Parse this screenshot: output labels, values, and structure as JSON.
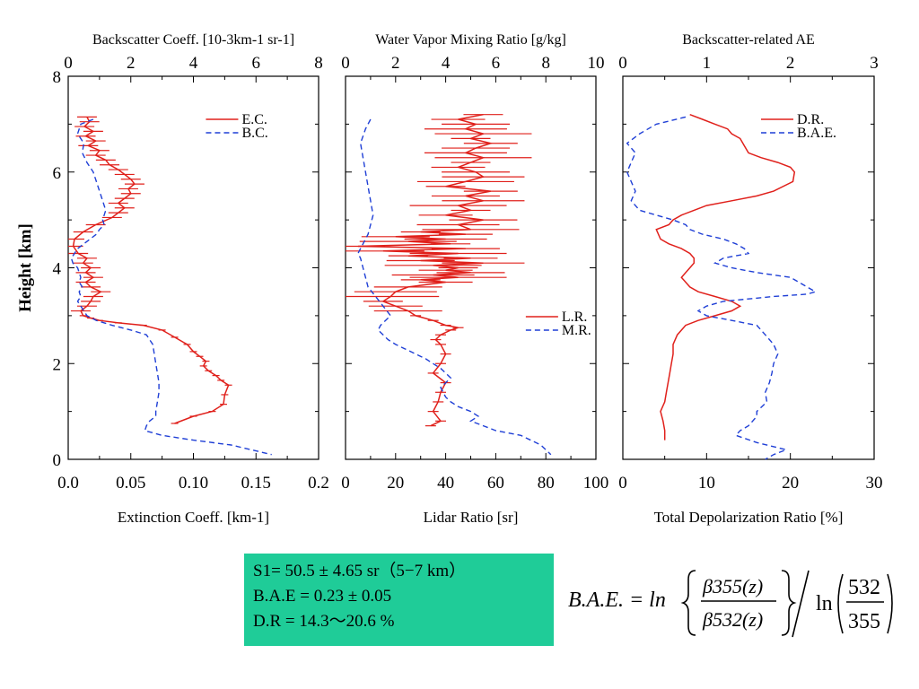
{
  "chart_data": [
    {
      "type": "line",
      "top_xlabel": "Backscatter Coeff. [10-3km-1 sr-1]",
      "top_xticks": [
        "0",
        "2",
        "4",
        "6",
        "8"
      ],
      "top_xlim": [
        0,
        8
      ],
      "bottom_xlabel": "Extinction Coeff. [km-1]",
      "bottom_xticks": [
        "0.0",
        "0.05",
        "0.10",
        "0.15",
        "0.2"
      ],
      "bottom_xlim": [
        0,
        0.2
      ],
      "ylabel": "Height [km]",
      "yticks": [
        "0",
        "2",
        "4",
        "6",
        "8"
      ],
      "ylim": [
        0,
        8
      ],
      "legend_position": "top-right",
      "series": [
        {
          "name": "E.C.",
          "color": "#e0201b",
          "style": "solid",
          "axis": "bottom",
          "error_bars": true,
          "x": [
            0.015,
            0.017,
            0.013,
            0.02,
            0.014,
            0.022,
            0.016,
            0.025,
            0.022,
            0.03,
            0.033,
            0.04,
            0.045,
            0.05,
            0.053,
            0.048,
            0.05,
            0.045,
            0.04,
            0.045,
            0.04,
            0.035,
            0.022,
            0.012,
            0.005,
            0.004,
            0.008,
            0.015,
            0.012,
            0.018,
            0.014,
            0.02,
            0.014,
            0.018,
            0.026,
            0.02,
            0.018,
            0.015,
            0.01,
            0.012,
            0.018,
            0.025,
            0.04,
            0.06,
            0.075,
            0.085,
            0.095,
            0.1,
            0.105,
            0.11,
            0.108,
            0.112,
            0.118,
            0.122,
            0.128,
            0.125,
            0.124,
            0.115,
            0.1,
            0.085
          ],
          "y": [
            7.15,
            7.05,
            6.95,
            6.85,
            6.75,
            6.65,
            6.55,
            6.45,
            6.35,
            6.25,
            6.15,
            6.05,
            5.95,
            5.85,
            5.75,
            5.65,
            5.55,
            5.45,
            5.35,
            5.25,
            5.15,
            5.05,
            4.9,
            4.75,
            4.6,
            4.45,
            4.3,
            4.2,
            4.1,
            4.0,
            3.9,
            3.8,
            3.7,
            3.6,
            3.5,
            3.4,
            3.3,
            3.2,
            3.1,
            3.0,
            2.95,
            2.9,
            2.85,
            2.8,
            2.7,
            2.55,
            2.4,
            2.25,
            2.15,
            2.05,
            1.95,
            1.85,
            1.75,
            1.65,
            1.55,
            1.35,
            1.15,
            1.0,
            0.9,
            0.75
          ]
        },
        {
          "name": "B.C.",
          "color": "#1f3fd6",
          "style": "dashed",
          "axis": "top",
          "x": [
            0.8,
            0.4,
            0.3,
            0.5,
            0.45,
            0.6,
            0.8,
            0.9,
            1.0,
            1.1,
            1.2,
            1.1,
            1.15,
            1.0,
            0.9,
            0.7,
            0.5,
            0.3,
            0.2,
            0.1,
            0.15,
            0.3,
            0.35,
            0.4,
            0.35,
            0.45,
            0.35,
            0.4,
            0.3,
            0.5,
            0.6,
            0.9,
            1.4,
            2.0,
            2.5,
            2.7,
            2.75,
            2.8,
            2.85,
            2.9,
            2.9,
            2.85,
            2.8,
            2.8,
            2.6,
            2.5,
            2.45,
            3.0,
            4.0,
            5.2,
            6.5
          ],
          "y": [
            7.1,
            7.0,
            6.8,
            6.6,
            6.4,
            6.2,
            6.0,
            5.8,
            5.6,
            5.4,
            5.2,
            5.0,
            4.9,
            4.8,
            4.7,
            4.6,
            4.5,
            4.4,
            4.3,
            4.2,
            4.1,
            4.0,
            3.9,
            3.8,
            3.7,
            3.6,
            3.5,
            3.4,
            3.3,
            3.1,
            3.0,
            2.9,
            2.8,
            2.7,
            2.6,
            2.4,
            2.2,
            2.0,
            1.8,
            1.6,
            1.4,
            1.2,
            1.0,
            0.9,
            0.8,
            0.7,
            0.6,
            0.5,
            0.4,
            0.3,
            0.1
          ]
        }
      ]
    },
    {
      "type": "line",
      "top_xlabel": "Water Vapor Mixing Ratio [g/kg]",
      "top_xticks": [
        "0",
        "2",
        "4",
        "6",
        "8",
        "10"
      ],
      "top_xlim": [
        0,
        10
      ],
      "bottom_xlabel": "Lidar Ratio [sr]",
      "bottom_xticks": [
        "0",
        "20",
        "40",
        "60",
        "80",
        "100"
      ],
      "bottom_xlim": [
        0,
        100
      ],
      "ylim": [
        0,
        8
      ],
      "legend_position": "center-right",
      "series": [
        {
          "name": "L.R.",
          "color": "#e0201b",
          "style": "solid",
          "axis": "bottom",
          "error_bars": true,
          "x": [
            55,
            45,
            52,
            48,
            55,
            50,
            58,
            52,
            48,
            55,
            50,
            45,
            52,
            55,
            48,
            40,
            58,
            48,
            55,
            45,
            50,
            40,
            55,
            45,
            50,
            30,
            48,
            20,
            40,
            25,
            42,
            5,
            48,
            15,
            45,
            25,
            50,
            30,
            55,
            35,
            45,
            40,
            50,
            35,
            45,
            30,
            40,
            25,
            20,
            18,
            15,
            20,
            25,
            28,
            35,
            40,
            45,
            42,
            38,
            36,
            38,
            40,
            38,
            35,
            40,
            38,
            37,
            35,
            38,
            34
          ],
          "y": [
            7.2,
            7.1,
            7.0,
            6.9,
            6.8,
            6.7,
            6.6,
            6.5,
            6.4,
            6.3,
            6.2,
            6.1,
            6.0,
            5.9,
            5.8,
            5.7,
            5.6,
            5.5,
            5.4,
            5.3,
            5.2,
            5.1,
            5.0,
            4.9,
            4.8,
            4.75,
            4.7,
            4.65,
            4.6,
            4.55,
            4.5,
            4.45,
            4.4,
            4.35,
            4.3,
            4.25,
            4.2,
            4.15,
            4.1,
            4.05,
            4.0,
            3.95,
            3.9,
            3.85,
            3.8,
            3.75,
            3.7,
            3.6,
            3.5,
            3.4,
            3.3,
            3.2,
            3.1,
            3.0,
            2.9,
            2.8,
            2.75,
            2.7,
            2.6,
            2.5,
            2.4,
            2.2,
            2.0,
            1.8,
            1.6,
            1.4,
            1.2,
            1.0,
            0.8,
            0.7
          ]
        },
        {
          "name": "M.R.",
          "color": "#1f3fd6",
          "style": "dashed",
          "axis": "top",
          "x": [
            1.0,
            0.8,
            0.6,
            0.7,
            0.8,
            0.9,
            1.0,
            1.1,
            1.0,
            0.9,
            0.8,
            0.7,
            0.6,
            0.5,
            0.6,
            0.7,
            0.8,
            0.9,
            1.2,
            1.5,
            1.8,
            1.6,
            1.4,
            1.3,
            1.5,
            1.7,
            2.0,
            2.4,
            2.8,
            3.2,
            3.5,
            3.8,
            4.0,
            4.2,
            4.0,
            3.8,
            3.9,
            4.0,
            4.2,
            4.5,
            5.0,
            5.3,
            5.0,
            5.5,
            6.0,
            7.0,
            7.8,
            8.2
          ],
          "y": [
            7.1,
            6.9,
            6.6,
            6.3,
            6.0,
            5.7,
            5.4,
            5.1,
            4.9,
            4.7,
            4.6,
            4.5,
            4.4,
            4.3,
            4.2,
            4.0,
            3.8,
            3.6,
            3.4,
            3.2,
            3.0,
            2.9,
            2.8,
            2.7,
            2.6,
            2.5,
            2.4,
            2.3,
            2.2,
            2.1,
            2.0,
            1.9,
            1.8,
            1.7,
            1.6,
            1.5,
            1.4,
            1.3,
            1.2,
            1.1,
            1.0,
            0.9,
            0.8,
            0.7,
            0.6,
            0.5,
            0.3,
            0.1
          ]
        }
      ]
    },
    {
      "type": "line",
      "top_xlabel": "Backscatter-related AE",
      "top_xticks": [
        "0",
        "1",
        "2",
        "3"
      ],
      "top_xlim": [
        0,
        3
      ],
      "bottom_xlabel": "Total Depolarization Ratio [%]",
      "bottom_xticks": [
        "0",
        "10",
        "20",
        "30"
      ],
      "bottom_xlim": [
        0,
        30
      ],
      "ylim": [
        0,
        8
      ],
      "legend_position": "top-right",
      "series": [
        {
          "name": "D.R.",
          "color": "#e0201b",
          "style": "solid",
          "axis": "bottom",
          "x": [
            8,
            9.5,
            11,
            12.5,
            13,
            14,
            14.5,
            15,
            16.5,
            18.5,
            20,
            20.5,
            20.3,
            18,
            16,
            13,
            10,
            8.5,
            7,
            6,
            5.5,
            4,
            4.5,
            5.5,
            7,
            8,
            8.5,
            8.5,
            8,
            7,
            8,
            9,
            11,
            13,
            14,
            13,
            11,
            9,
            7.5,
            6.5,
            6,
            6,
            5.8,
            5.6,
            5.4,
            5.2,
            5,
            4.5,
            4.8,
            5,
            5
          ],
          "y": [
            7.2,
            7.1,
            7.0,
            6.9,
            6.8,
            6.7,
            6.55,
            6.4,
            6.3,
            6.2,
            6.1,
            6.0,
            5.8,
            5.6,
            5.5,
            5.4,
            5.3,
            5.2,
            5.1,
            5.0,
            4.9,
            4.8,
            4.6,
            4.5,
            4.4,
            4.3,
            4.2,
            4.1,
            4.0,
            3.8,
            3.6,
            3.5,
            3.4,
            3.3,
            3.2,
            3.1,
            3.0,
            2.9,
            2.8,
            2.6,
            2.4,
            2.2,
            2.0,
            1.8,
            1.6,
            1.4,
            1.2,
            1.0,
            0.8,
            0.6,
            0.4
          ]
        },
        {
          "name": "B.A.E.",
          "color": "#1f3fd6",
          "style": "dashed",
          "axis": "top",
          "x": [
            0.75,
            0.4,
            0.2,
            0.05,
            0.15,
            0.1,
            0.05,
            0.1,
            0.15,
            0.1,
            0.2,
            0.4,
            0.6,
            0.75,
            0.8,
            0.95,
            1.2,
            1.35,
            1.45,
            1.5,
            1.2,
            1.1,
            1.3,
            1.6,
            2.0,
            2.1,
            2.2,
            2.3,
            2.2,
            1.8,
            1.2,
            1.0,
            0.9,
            1.0,
            1.3,
            1.6,
            1.7,
            1.8,
            1.85,
            1.8,
            1.78,
            1.75,
            1.7,
            1.72,
            1.6,
            1.6,
            1.55,
            1.5,
            1.4,
            1.35,
            1.6,
            1.95,
            1.8,
            1.7
          ],
          "y": [
            7.15,
            7.0,
            6.8,
            6.6,
            6.4,
            6.2,
            6.0,
            5.8,
            5.6,
            5.4,
            5.2,
            5.1,
            5.0,
            4.9,
            4.8,
            4.7,
            4.6,
            4.5,
            4.4,
            4.3,
            4.2,
            4.1,
            4.0,
            3.9,
            3.8,
            3.7,
            3.6,
            3.5,
            3.45,
            3.4,
            3.3,
            3.2,
            3.1,
            3.0,
            2.9,
            2.8,
            2.6,
            2.4,
            2.2,
            2.0,
            1.8,
            1.6,
            1.4,
            1.2,
            1.0,
            0.9,
            0.8,
            0.7,
            0.6,
            0.5,
            0.35,
            0.2,
            0.1,
            0.0
          ]
        }
      ]
    }
  ],
  "summary_box": {
    "line1": "S1= 50.5 ± 4.65 sr（5−7 km）",
    "line2": "B.A.E = 0.23 ± 0.05",
    "line3": "D.R = 14.3〜20.6 %",
    "bg_color": "#1fcc98"
  },
  "formula": {
    "lhs": "B.A.E. = ln",
    "numerator": "β355(z)",
    "denominator": "β532(z)",
    "ln2": "ln",
    "num2": "532",
    "den2": "355"
  }
}
